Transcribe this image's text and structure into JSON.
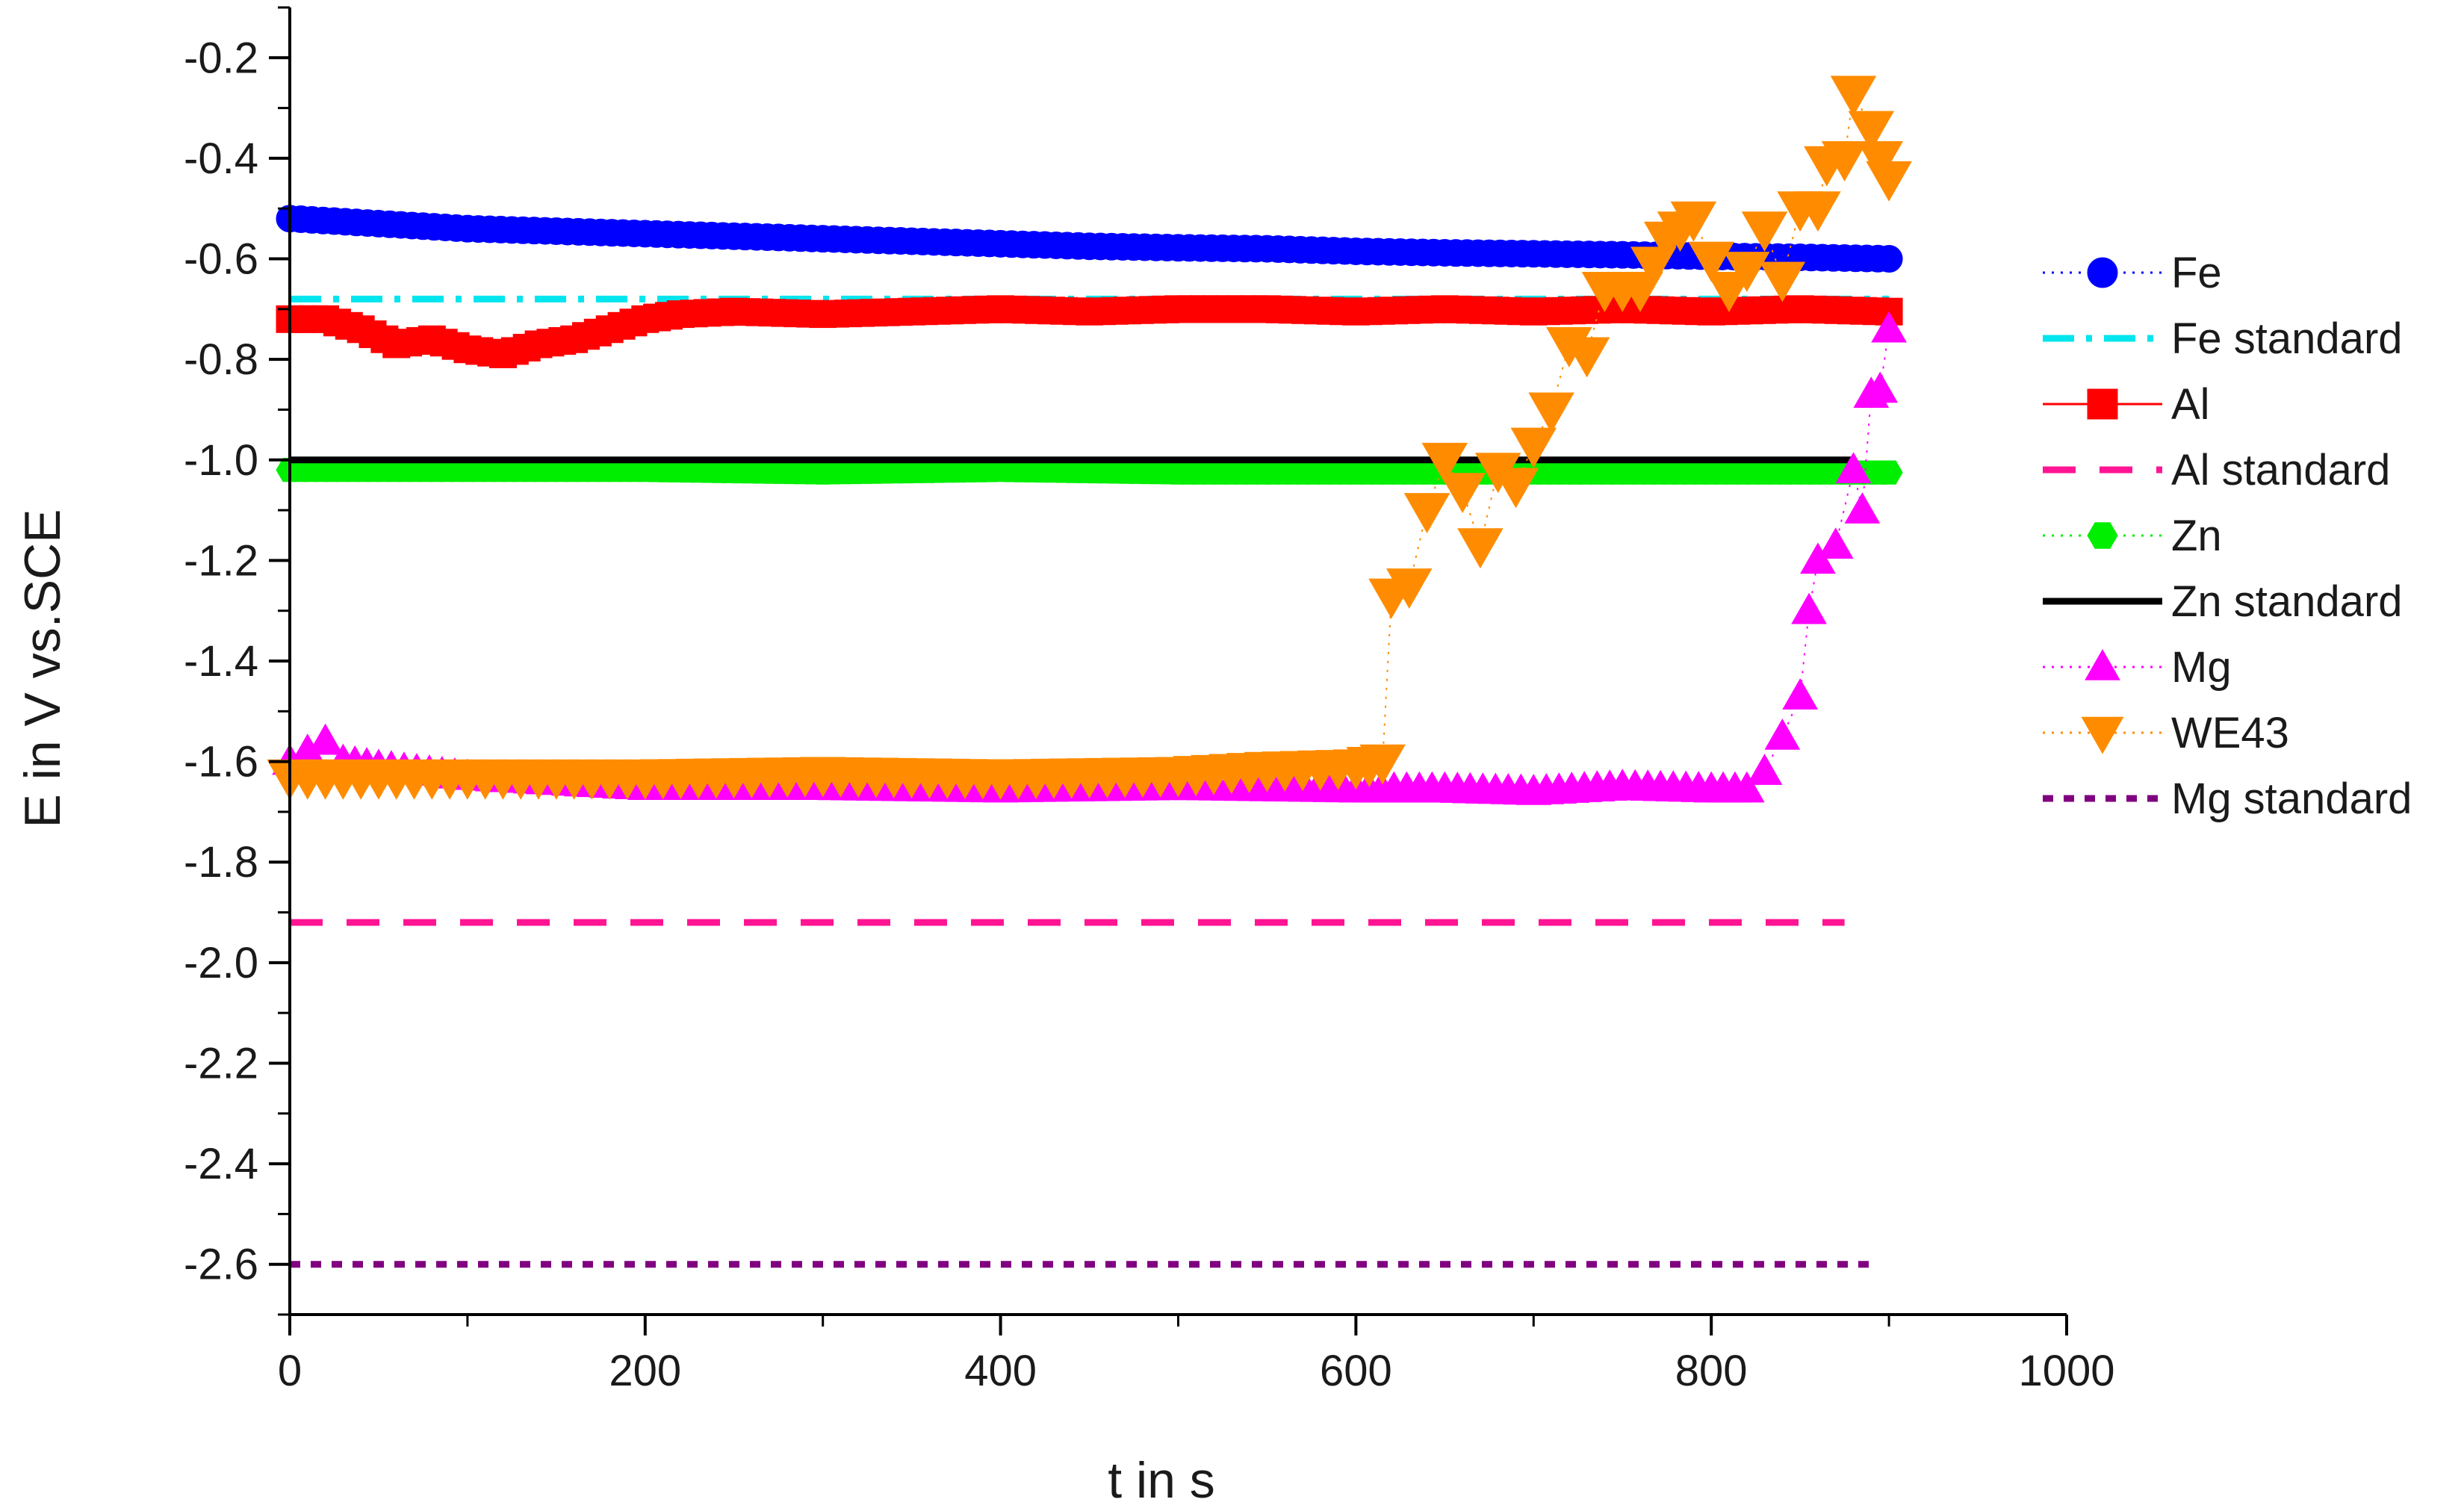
{
  "chart_data": {
    "type": "line",
    "xlabel": "t in s",
    "ylabel": "E in  V vs.SCE",
    "xlim": [
      0,
      1000
    ],
    "ylim": [
      -2.7,
      -0.1
    ],
    "x_ticks": [
      "0",
      "200",
      "400",
      "600",
      "800",
      "1000"
    ],
    "y_ticks": [
      "-0.2",
      "-0.4",
      "-0.6",
      "-0.8",
      "-1.0",
      "-1.2",
      "-1.4",
      "-1.6",
      "-1.8",
      "-2.0",
      "-2.2",
      "-2.4",
      "-2.6"
    ],
    "grid": false,
    "legend_position": "right",
    "series": [
      {
        "name": "Fe",
        "color": "#0000ff",
        "marker": "circle",
        "line": "dotted",
        "points": [
          [
            0,
            -0.52
          ],
          [
            50,
            -0.53
          ],
          [
            100,
            -0.54
          ],
          [
            150,
            -0.545
          ],
          [
            200,
            -0.55
          ],
          [
            250,
            -0.555
          ],
          [
            300,
            -0.56
          ],
          [
            350,
            -0.565
          ],
          [
            400,
            -0.57
          ],
          [
            450,
            -0.575
          ],
          [
            500,
            -0.578
          ],
          [
            550,
            -0.58
          ],
          [
            600,
            -0.585
          ],
          [
            650,
            -0.588
          ],
          [
            700,
            -0.59
          ],
          [
            750,
            -0.592
          ],
          [
            800,
            -0.595
          ],
          [
            850,
            -0.597
          ],
          [
            900,
            -0.6
          ]
        ]
      },
      {
        "name": "Fe standard",
        "color": "#00e5ee",
        "marker": "none",
        "line": "dashdot",
        "points": [
          [
            0,
            -0.68
          ],
          [
            900,
            -0.68
          ]
        ]
      },
      {
        "name": "Al",
        "color": "#ff0000",
        "marker": "square",
        "line": "solid",
        "points": [
          [
            0,
            -0.72
          ],
          [
            20,
            -0.72
          ],
          [
            40,
            -0.74
          ],
          [
            60,
            -0.77
          ],
          [
            80,
            -0.76
          ],
          [
            100,
            -0.78
          ],
          [
            120,
            -0.79
          ],
          [
            140,
            -0.77
          ],
          [
            160,
            -0.76
          ],
          [
            180,
            -0.74
          ],
          [
            200,
            -0.72
          ],
          [
            220,
            -0.71
          ],
          [
            250,
            -0.705
          ],
          [
            300,
            -0.71
          ],
          [
            350,
            -0.705
          ],
          [
            400,
            -0.7
          ],
          [
            450,
            -0.705
          ],
          [
            500,
            -0.7
          ],
          [
            550,
            -0.7
          ],
          [
            600,
            -0.705
          ],
          [
            650,
            -0.7
          ],
          [
            700,
            -0.705
          ],
          [
            750,
            -0.7
          ],
          [
            800,
            -0.705
          ],
          [
            850,
            -0.7
          ],
          [
            900,
            -0.705
          ]
        ]
      },
      {
        "name": "Al standard",
        "color": "#ff1493",
        "marker": "none",
        "line": "dashed",
        "points": [
          [
            0,
            -1.92
          ],
          [
            875,
            -1.92
          ]
        ]
      },
      {
        "name": "Zn",
        "color": "#00ee00",
        "marker": "hexagon",
        "line": "dotted",
        "points": [
          [
            0,
            -1.02
          ],
          [
            100,
            -1.02
          ],
          [
            200,
            -1.02
          ],
          [
            300,
            -1.025
          ],
          [
            400,
            -1.02
          ],
          [
            500,
            -1.025
          ],
          [
            600,
            -1.025
          ],
          [
            700,
            -1.025
          ],
          [
            800,
            -1.025
          ],
          [
            900,
            -1.025
          ]
        ]
      },
      {
        "name": "Zn standard",
        "color": "#000000",
        "marker": "none",
        "line": "solid",
        "points": [
          [
            0,
            -1.0
          ],
          [
            880,
            -1.0
          ]
        ]
      },
      {
        "name": "Mg",
        "color": "#ff00ff",
        "marker": "triangle-up",
        "line": "dotted",
        "points": [
          [
            0,
            -1.6
          ],
          [
            10,
            -1.58
          ],
          [
            20,
            -1.56
          ],
          [
            30,
            -1.6
          ],
          [
            50,
            -1.61
          ],
          [
            100,
            -1.63
          ],
          [
            150,
            -1.64
          ],
          [
            200,
            -1.65
          ],
          [
            250,
            -1.65
          ],
          [
            300,
            -1.65
          ],
          [
            400,
            -1.655
          ],
          [
            500,
            -1.65
          ],
          [
            600,
            -1.655
          ],
          [
            650,
            -1.655
          ],
          [
            700,
            -1.66
          ],
          [
            750,
            -1.65
          ],
          [
            800,
            -1.655
          ],
          [
            820,
            -1.655
          ],
          [
            830,
            -1.62
          ],
          [
            840,
            -1.55
          ],
          [
            850,
            -1.47
          ],
          [
            855,
            -1.3
          ],
          [
            860,
            -1.2
          ],
          [
            870,
            -1.17
          ],
          [
            880,
            -1.02
          ],
          [
            885,
            -1.1
          ],
          [
            890,
            -0.87
          ],
          [
            895,
            -0.86
          ],
          [
            900,
            -0.74
          ]
        ]
      },
      {
        "name": "WE43",
        "color": "#ff8c00",
        "marker": "triangle-down",
        "line": "dotted",
        "points": [
          [
            0,
            -1.63
          ],
          [
            100,
            -1.63
          ],
          [
            200,
            -1.63
          ],
          [
            300,
            -1.625
          ],
          [
            400,
            -1.63
          ],
          [
            500,
            -1.625
          ],
          [
            550,
            -1.615
          ],
          [
            600,
            -1.61
          ],
          [
            615,
            -1.6
          ],
          [
            620,
            -1.27
          ],
          [
            630,
            -1.25
          ],
          [
            640,
            -1.1
          ],
          [
            650,
            -1.0
          ],
          [
            660,
            -1.06
          ],
          [
            670,
            -1.17
          ],
          [
            680,
            -1.02
          ],
          [
            690,
            -1.05
          ],
          [
            700,
            -0.97
          ],
          [
            710,
            -0.9
          ],
          [
            720,
            -0.77
          ],
          [
            730,
            -0.79
          ],
          [
            740,
            -0.66
          ],
          [
            760,
            -0.66
          ],
          [
            775,
            -0.56
          ],
          [
            790,
            -0.52
          ],
          [
            800,
            -0.6
          ],
          [
            810,
            -0.66
          ],
          [
            820,
            -0.62
          ],
          [
            830,
            -0.54
          ],
          [
            840,
            -0.64
          ],
          [
            850,
            -0.5
          ],
          [
            860,
            -0.5
          ],
          [
            865,
            -0.41
          ],
          [
            875,
            -0.4
          ],
          [
            880,
            -0.27
          ],
          [
            890,
            -0.34
          ],
          [
            895,
            -0.4
          ],
          [
            900,
            -0.44
          ]
        ]
      },
      {
        "name": "Mg standard",
        "color": "#800080",
        "marker": "none",
        "line": "dotted-heavy",
        "points": [
          [
            0,
            -2.6
          ],
          [
            890,
            -2.6
          ]
        ]
      }
    ]
  }
}
